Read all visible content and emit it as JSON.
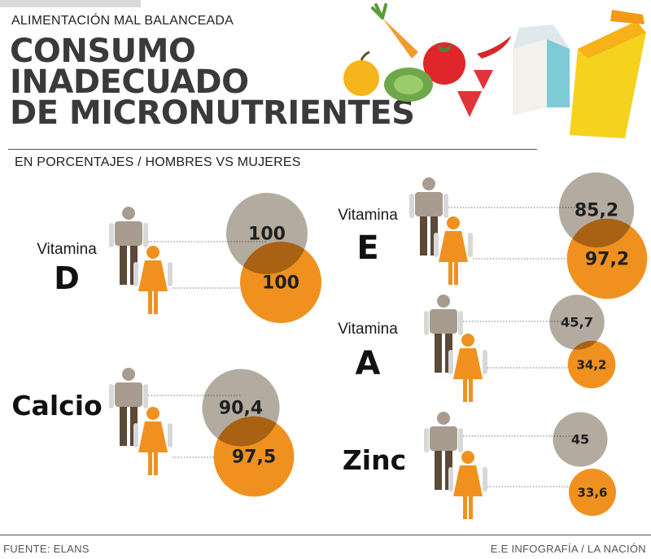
{
  "header": {
    "kicker": "ALIMENTACIÓN MAL BALANCEADA",
    "title_lines": [
      "CONSUMO",
      "INADECUADO",
      "DE MICRONUTRIENTES"
    ],
    "subtitle": "EN PORCENTAJES / HOMBRES VS MUJERES"
  },
  "footer": {
    "source": "FUENTE: ELANS",
    "credit": "E.E INFOGRAFÍA / LA NACIÓN"
  },
  "colors": {
    "men": "#a79c8f",
    "women": "#f0911f",
    "title": "#3a3a3a"
  },
  "chart_data": {
    "type": "bubble-comparison",
    "unit": "%",
    "series": [
      "Hombres",
      "Mujeres"
    ],
    "categories": [
      {
        "label_small": "Vitamina",
        "label_big": "D",
        "men": 100,
        "women": 100,
        "men_text": "100",
        "women_text": "100"
      },
      {
        "label_small": "",
        "label_big": "Calcio",
        "men": 90.4,
        "women": 97.5,
        "men_text": "90,4",
        "women_text": "97,5"
      },
      {
        "label_small": "Vitamina",
        "label_big": "E",
        "men": 85.2,
        "women": 97.2,
        "men_text": "85,2",
        "women_text": "97,2"
      },
      {
        "label_small": "Vitamina",
        "label_big": "A",
        "men": 45.7,
        "women": 34.2,
        "men_text": "45,7",
        "women_text": "34,2"
      },
      {
        "label_small": "",
        "label_big": "Zinc",
        "men": 45,
        "women": 33.6,
        "men_text": "45",
        "women_text": "33,6"
      }
    ]
  }
}
